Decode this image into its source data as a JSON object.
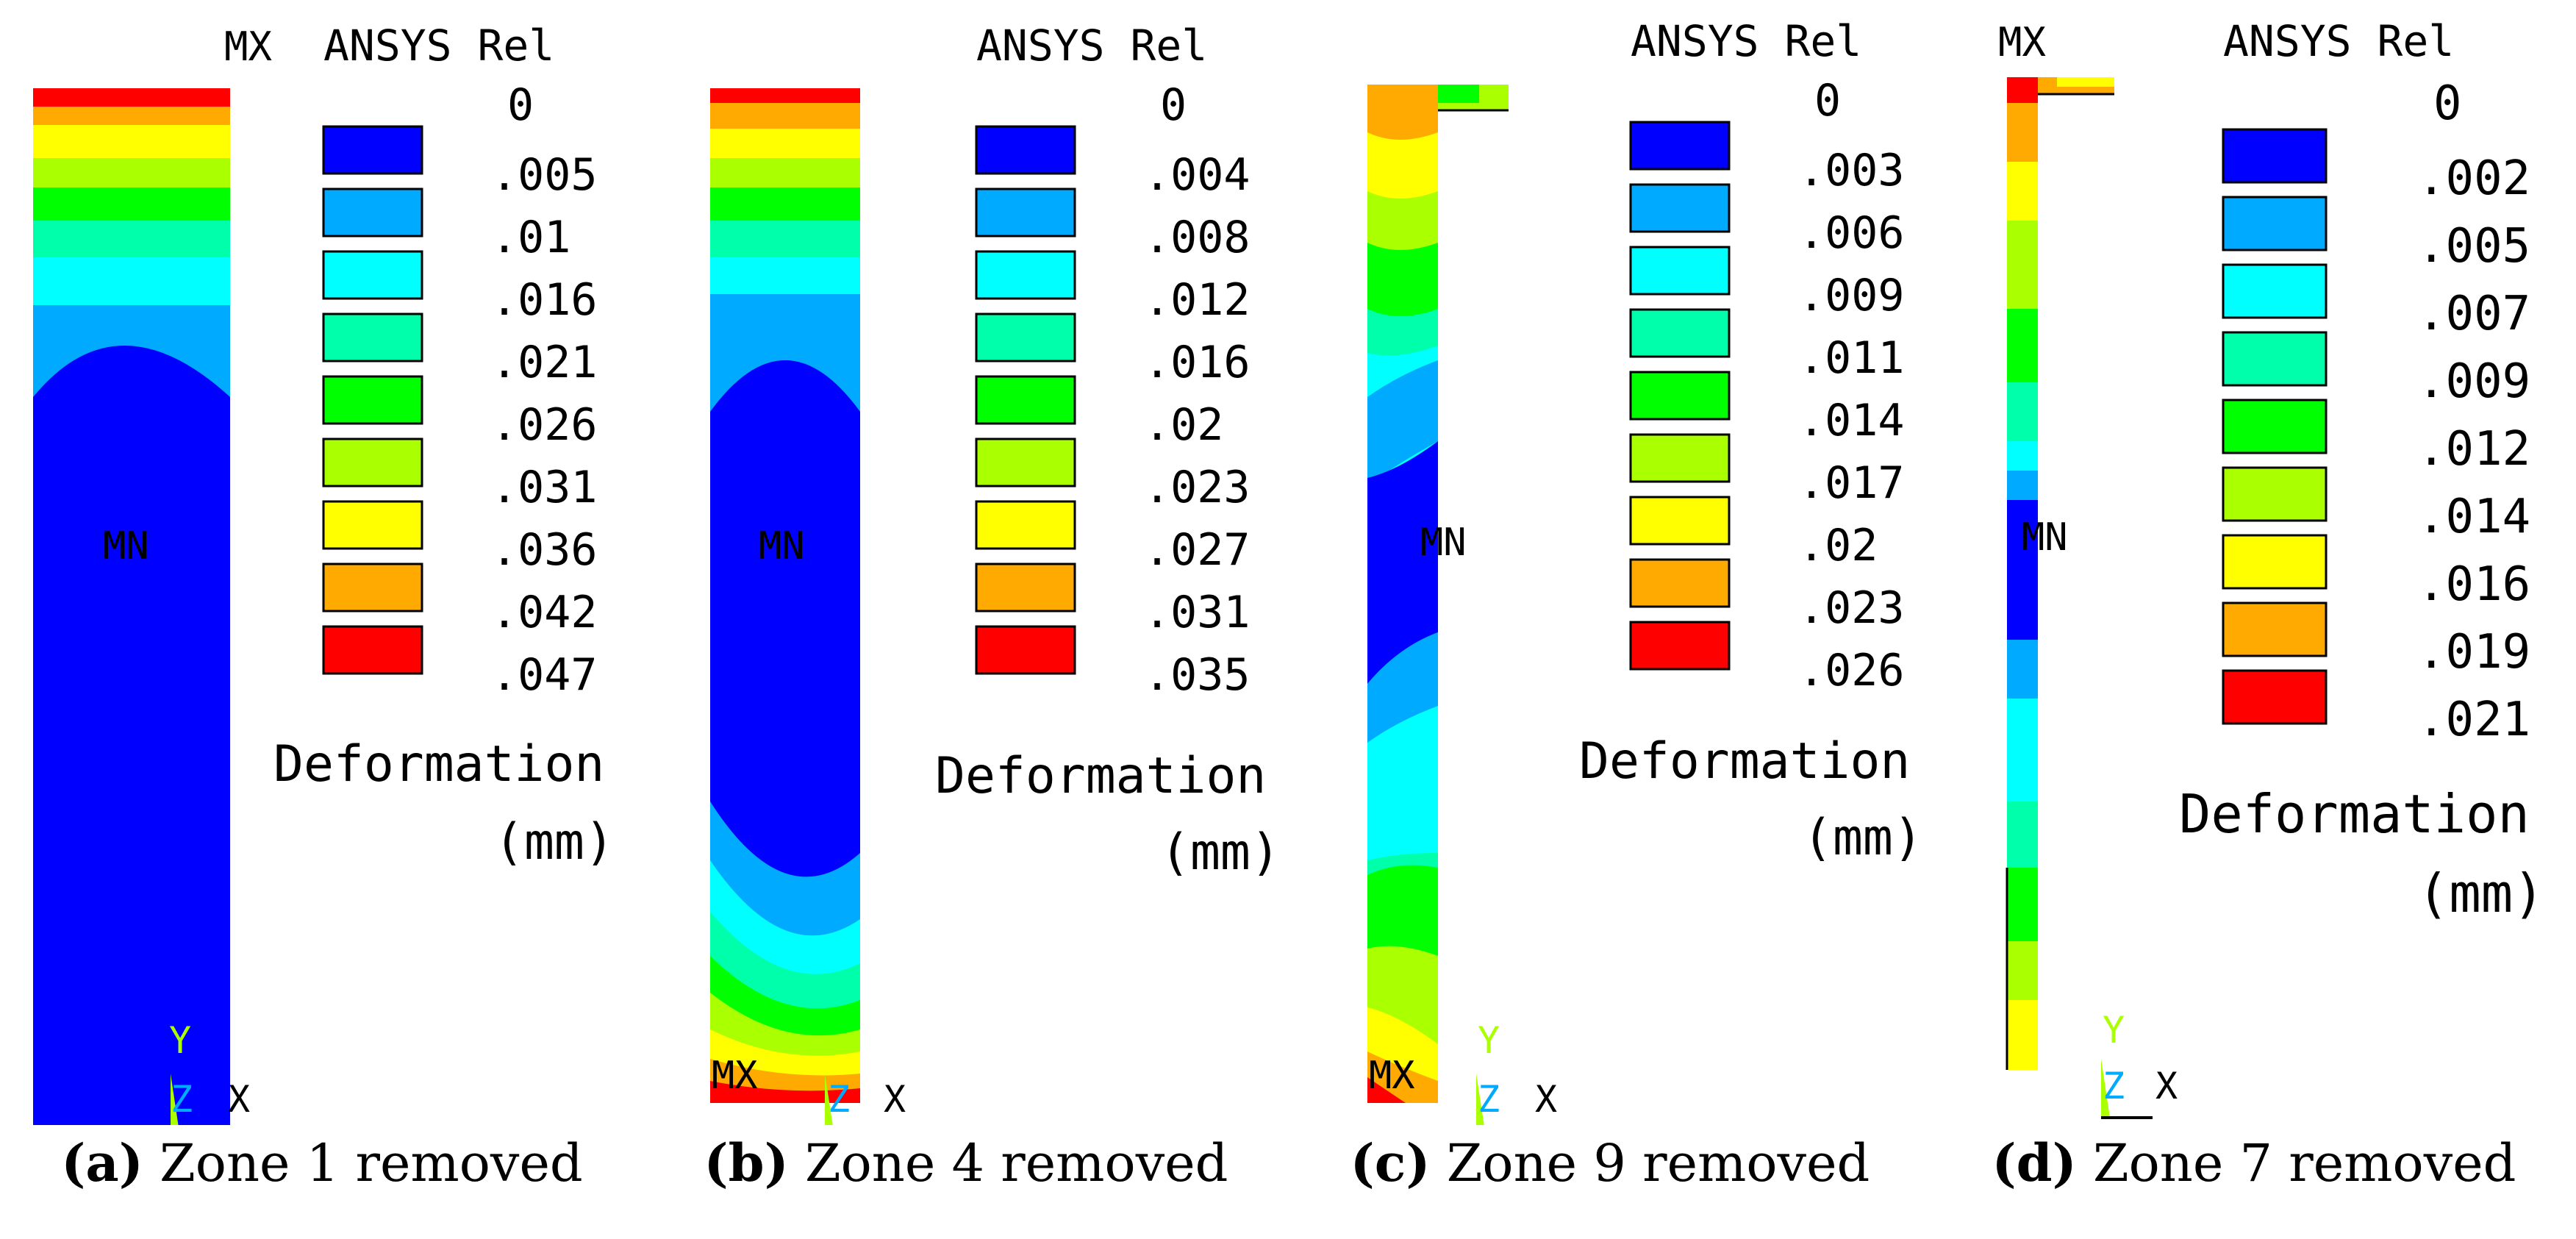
{
  "panels": [
    {
      "id": "a",
      "legend_title": "ANSYS Rel",
      "values": [
        "0",
        ".005",
        ".01",
        ".016",
        ".021",
        ".026",
        ".031",
        ".036",
        ".042",
        ".047"
      ],
      "unit_label": "Deformation",
      "unit": "(mm)",
      "max_label": "MX",
      "min_label": "MN",
      "axis_y": "Y",
      "axis_z": "Z",
      "axis_x": "X",
      "caption_letter": "(a)",
      "caption_text": "Zone 1 removed"
    },
    {
      "id": "b",
      "legend_title": "ANSYS Rel",
      "values": [
        "0",
        ".004",
        ".008",
        ".012",
        ".016",
        ".02",
        ".023",
        ".027",
        ".031",
        ".035"
      ],
      "unit_label": "Deformation",
      "unit": "(mm)",
      "max_label": "MX",
      "min_label": "MN",
      "axis_y": "Y",
      "axis_z": "Z",
      "axis_x": "X",
      "caption_letter": "(b)",
      "caption_text": "Zone 4 removed"
    },
    {
      "id": "c",
      "legend_title": "ANSYS Rel",
      "values": [
        "0",
        ".003",
        ".006",
        ".009",
        ".011",
        ".014",
        ".017",
        ".02",
        ".023",
        ".026"
      ],
      "unit_label": "Deformation",
      "unit": "(mm)",
      "max_label": "MX",
      "min_label": "MN",
      "axis_y": "Y",
      "axis_z": "Z",
      "axis_x": "X",
      "caption_letter": "(c)",
      "caption_text": "Zone 9 removed"
    },
    {
      "id": "d",
      "legend_title": "ANSYS Rel",
      "values": [
        "0",
        ".002",
        ".005",
        ".007",
        ".009",
        ".012",
        ".014",
        ".016",
        ".019",
        ".021"
      ],
      "unit_label": "Deformation",
      "unit": "(mm)",
      "max_label": "MX",
      "min_label": "MN",
      "axis_y": "Y",
      "axis_z": "Z",
      "axis_x": "X",
      "caption_letter": "(d)",
      "caption_text": "Zone 7 removed"
    }
  ],
  "colors": {
    "scale": [
      "#0000ff",
      "#00aaff",
      "#00ffff",
      "#00ffaa",
      "#00ff00",
      "#aaff00",
      "#ffff00",
      "#ffaa00",
      "#ff0000"
    ],
    "triad_y": "#aaff00",
    "triad_z": "#00aaff"
  }
}
